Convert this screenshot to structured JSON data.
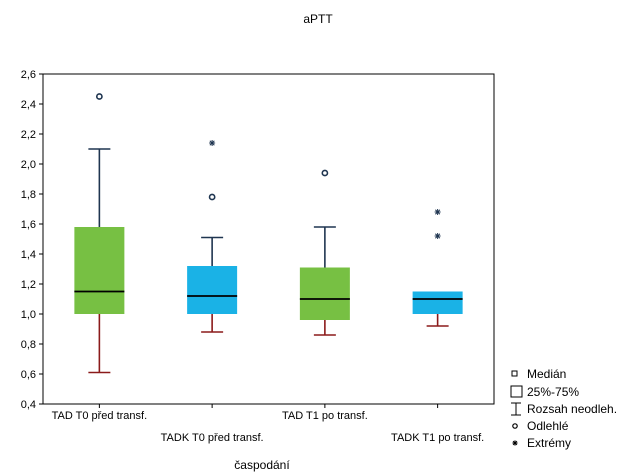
{
  "chart_data": {
    "type": "boxplot",
    "title": "aPTT",
    "xlabel": "časpodání",
    "ylabel": "",
    "ylim": [
      0.4,
      2.6
    ],
    "yticks": [
      "0,4",
      "0,6",
      "0,8",
      "1,0",
      "1,2",
      "1,4",
      "1,6",
      "1,8",
      "2,0",
      "2,2",
      "2,4",
      "2,6"
    ],
    "ytick_values": [
      0.4,
      0.6,
      0.8,
      1.0,
      1.2,
      1.4,
      1.6,
      1.8,
      2.0,
      2.2,
      2.4,
      2.6
    ],
    "grid": false,
    "legend_position": "bottom-right",
    "categories": [
      "TAD T0 před transf.",
      "TADK T0 před transf.",
      "TAD T1 po transf.",
      "TADK T1 po transf."
    ],
    "boxes": [
      {
        "category": "TAD T0 před transf.",
        "color": "#77c043",
        "whisker_low": 0.61,
        "q1": 1.0,
        "median": 1.15,
        "q3": 1.58,
        "whisker_high": 2.1,
        "outliers": [
          2.45
        ],
        "extremes": []
      },
      {
        "category": "TADK T0 před transf.",
        "color": "#1ab2e6",
        "whisker_low": 0.88,
        "q1": 1.0,
        "median": 1.12,
        "q3": 1.32,
        "whisker_high": 1.51,
        "outliers": [
          1.78
        ],
        "extremes": [
          2.14
        ]
      },
      {
        "category": "TAD T1 po transf.",
        "color": "#77c043",
        "whisker_low": 0.86,
        "q1": 0.96,
        "median": 1.1,
        "q3": 1.31,
        "whisker_high": 1.58,
        "outliers": [
          1.94
        ],
        "extremes": []
      },
      {
        "category": "TADK T1 po transf.",
        "color": "#1ab2e6",
        "whisker_low": 0.92,
        "q1": 1.0,
        "median": 1.1,
        "q3": 1.15,
        "whisker_high": 1.15,
        "outliers": [],
        "extremes": [
          1.68,
          1.52
        ]
      }
    ],
    "legend": [
      "Medián",
      "25%-75%",
      "Rozsah neodleh.",
      "Odlehlé",
      "Extrémy"
    ]
  }
}
